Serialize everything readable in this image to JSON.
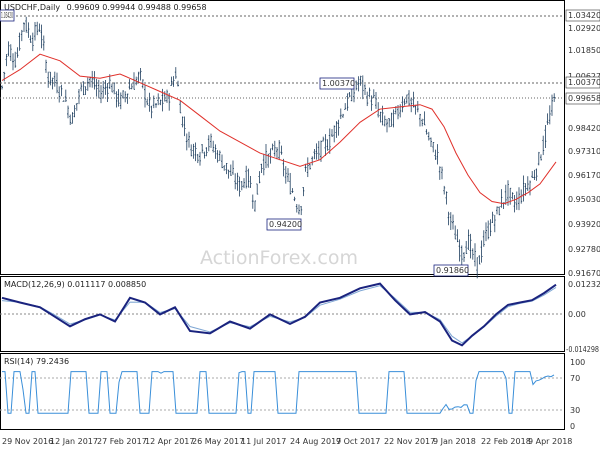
{
  "header": {
    "symbol": "USDCHF,Daily",
    "ohlc": "0.99609 0.99944 0.99488 0.99658"
  },
  "watermark": "ActionForex.com",
  "colors": {
    "candles": "#1f3f5f",
    "ma": "#e0302a",
    "macd": "#1a237e",
    "signal": "#7fa7d4",
    "rsi": "#3a8fd9",
    "grid": "#999999",
    "border": "#000000",
    "boxed_label_border": "#1a237e"
  },
  "price_axis": {
    "ticks": [
      "1.02920",
      "1.01850",
      "1.00627",
      "0.98420",
      "0.97310",
      "0.96170",
      "0.95030",
      "0.93920",
      "0.92780",
      "0.91670"
    ],
    "boxed_top": "1.03420",
    "boxed_mid": "1.00370",
    "boxed_current": "0.99658"
  },
  "macd_axis": {
    "title": "MACD(12,26,9) 0.011117 0.008850",
    "ticks": [
      "0.012327",
      "0.00",
      "-0.014298"
    ]
  },
  "rsi_axis": {
    "title": "RSI(14) 79.2436",
    "ticks": [
      "100",
      "70",
      "30",
      "0"
    ]
  },
  "annotations": [
    "1.00370",
    "0.94200",
    "0.91860",
    "1.03420"
  ],
  "x_axis": {
    "ticks": [
      "29 Nov 2016",
      "12 Jan 2017",
      "27 Feb 2017",
      "12 Apr 2017",
      "26 May 2017",
      "11 Jul 2017",
      "24 Aug 2017",
      "9 Oct 2017",
      "22 Nov 2017",
      "9 Jan 2018",
      "22 Feb 2018",
      "9 Apr 2018"
    ]
  },
  "chart_data": {
    "type": "line",
    "title": "USDCHF,Daily 0.99609 0.99944 0.99488 0.99658",
    "x": [
      "29 Nov 2016",
      "12 Jan 2017",
      "27 Feb 2017",
      "12 Apr 2017",
      "26 May 2017",
      "11 Jul 2017",
      "24 Aug 2017",
      "9 Oct 2017",
      "22 Nov 2017",
      "9 Jan 2018",
      "22 Feb 2018",
      "9 Apr 2018"
    ],
    "ylim": [
      0.915,
      1.036
    ],
    "series": [
      {
        "name": "USDCHF,Daily",
        "values": [
          1.0185,
          1.005,
          0.998,
          1.005,
          0.972,
          0.96,
          0.963,
          0.999,
          0.985,
          0.93,
          0.949,
          0.97
        ]
      },
      {
        "name": "MACD(12,26,9)",
        "values": [
          0.008,
          -0.005,
          -0.001,
          0.006,
          -0.009,
          -0.003,
          -0.005,
          0.01,
          -0.001,
          -0.013,
          0.004,
          0.011
        ]
      },
      {
        "name": "RSI(14)",
        "values": [
          60,
          40,
          52,
          58,
          35,
          48,
          45,
          62,
          50,
          28,
          60,
          79
        ]
      }
    ],
    "key_levels": [
      1.0342,
      1.0037,
      0.942,
      0.9186
    ],
    "current": 0.99658,
    "macd_range": [
      -0.0143,
      0.0123
    ],
    "rsi_range": [
      0,
      100
    ]
  }
}
